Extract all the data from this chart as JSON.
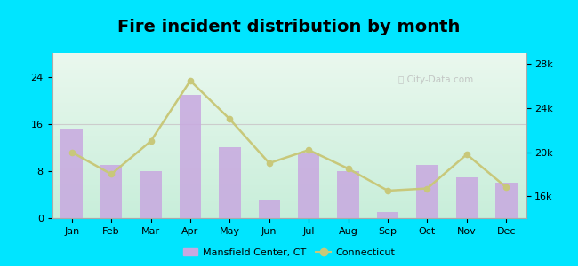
{
  "title": "Fire incident distribution by month",
  "months": [
    "Jan",
    "Feb",
    "Mar",
    "Apr",
    "May",
    "Jun",
    "Jul",
    "Aug",
    "Sep",
    "Oct",
    "Nov",
    "Dec"
  ],
  "bar_values": [
    15,
    9,
    8,
    21,
    12,
    3,
    11,
    8,
    1,
    9,
    7,
    6
  ],
  "line_values": [
    20000,
    18000,
    21000,
    26500,
    23000,
    19000,
    20200,
    18500,
    16500,
    16700,
    19800,
    16800
  ],
  "bar_color": "#c8a8e0",
  "line_color": "#c8c87a",
  "bar_ylim": [
    0,
    28
  ],
  "line_ylim": [
    14000,
    29000
  ],
  "left_yticks": [
    0,
    8,
    16,
    24
  ],
  "right_yticks": [
    16000,
    20000,
    24000,
    28000
  ],
  "right_yticklabels": [
    "16k",
    "20k",
    "24k",
    "28k"
  ],
  "bg_gradient_bottom": "#c8eeda",
  "bg_gradient_top": "#eaf8ee",
  "outer_bg": "#00e5ff",
  "title_fontsize": 14,
  "legend_label_bar": "Mansfield Center, CT",
  "legend_label_line": "Connecticut",
  "bar_width": 0.55
}
